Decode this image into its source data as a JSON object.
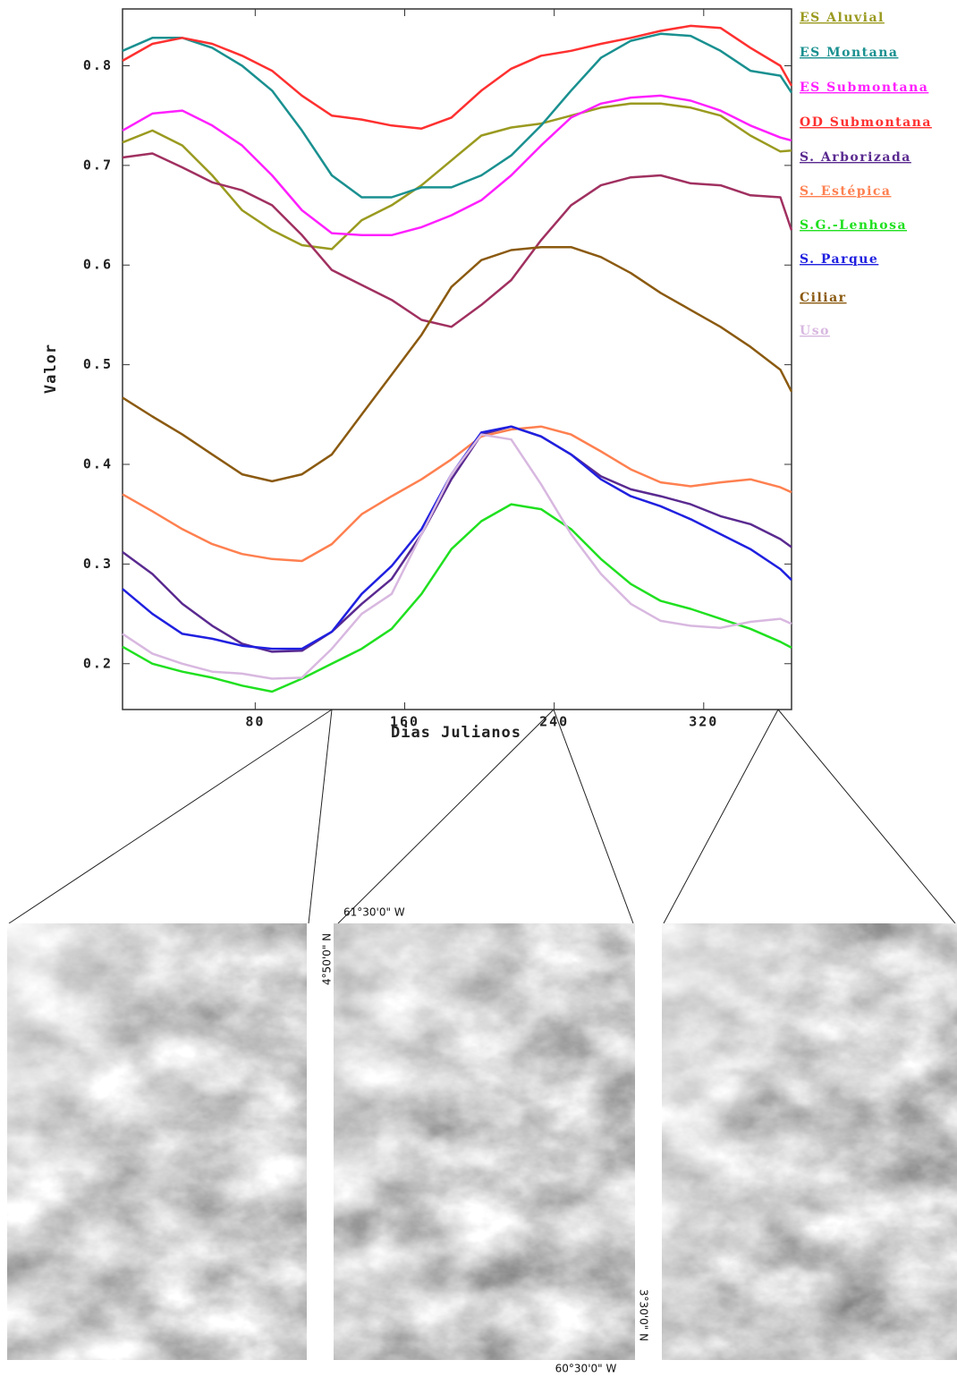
{
  "chart_data": {
    "type": "line",
    "xlabel": "Dias Julianos",
    "ylabel": "Valor",
    "x": [
      9,
      25,
      41,
      57,
      73,
      89,
      105,
      121,
      137,
      153,
      169,
      185,
      201,
      217,
      233,
      249,
      265,
      281,
      297,
      313,
      329,
      345,
      361,
      367
    ],
    "xlim": [
      9,
      367
    ],
    "xticks": [
      80,
      160,
      240,
      320
    ],
    "ylim": [
      0.154,
      0.857
    ],
    "yticks": [
      0.2,
      0.3,
      0.4,
      0.5,
      0.6,
      0.7,
      0.8
    ],
    "series": [
      {
        "name": "ES Aluvial",
        "color": "#9a9a20",
        "values": [
          0.723,
          0.735,
          0.72,
          0.69,
          0.655,
          0.635,
          0.62,
          0.616,
          0.645,
          0.66,
          0.68,
          0.705,
          0.73,
          0.738,
          0.742,
          0.75,
          0.758,
          0.762,
          0.762,
          0.758,
          0.75,
          0.73,
          0.714,
          0.715
        ]
      },
      {
        "name": "ES Montana",
        "color": "#1a9090",
        "values": [
          0.815,
          0.828,
          0.828,
          0.818,
          0.8,
          0.775,
          0.735,
          0.69,
          0.668,
          0.668,
          0.678,
          0.678,
          0.69,
          0.71,
          0.74,
          0.775,
          0.808,
          0.825,
          0.832,
          0.83,
          0.815,
          0.795,
          0.79,
          0.773
        ]
      },
      {
        "name": "ES Submontana",
        "color": "#ff20ff",
        "values": [
          0.735,
          0.752,
          0.755,
          0.74,
          0.72,
          0.69,
          0.655,
          0.632,
          0.63,
          0.63,
          0.638,
          0.65,
          0.665,
          0.69,
          0.72,
          0.748,
          0.762,
          0.768,
          0.77,
          0.765,
          0.755,
          0.74,
          0.728,
          0.725
        ]
      },
      {
        "name": "OD Submontana",
        "color": "#ff3030",
        "values": [
          0.805,
          0.822,
          0.828,
          0.822,
          0.81,
          0.795,
          0.77,
          0.75,
          0.746,
          0.74,
          0.737,
          0.748,
          0.775,
          0.797,
          0.81,
          0.815,
          0.822,
          0.828,
          0.835,
          0.84,
          0.838,
          0.818,
          0.8,
          0.78
        ]
      },
      {
        "color": "#a03060",
        "values": [
          0.708,
          0.712,
          0.698,
          0.683,
          0.675,
          0.66,
          0.63,
          0.595,
          0.58,
          0.565,
          0.545,
          0.538,
          0.56,
          0.585,
          0.625,
          0.66,
          0.68,
          0.688,
          0.69,
          0.682,
          0.68,
          0.67,
          0.668,
          0.635
        ]
      },
      {
        "name": "S. Arborizada",
        "color": "#5a2a90",
        "values": [
          0.312,
          0.29,
          0.26,
          0.238,
          0.22,
          0.212,
          0.213,
          0.232,
          0.26,
          0.285,
          0.33,
          0.385,
          0.43,
          0.438,
          0.428,
          0.41,
          0.388,
          0.375,
          0.368,
          0.36,
          0.348,
          0.34,
          0.325,
          0.317
        ]
      },
      {
        "name": "S. Estépica",
        "color": "#ff8050",
        "values": [
          0.37,
          0.353,
          0.335,
          0.32,
          0.31,
          0.305,
          0.303,
          0.32,
          0.35,
          0.368,
          0.385,
          0.405,
          0.428,
          0.435,
          0.438,
          0.43,
          0.413,
          0.395,
          0.382,
          0.378,
          0.382,
          0.385,
          0.377,
          0.372
        ]
      },
      {
        "name": "S.G.-Lenhosa",
        "color": "#20e020",
        "values": [
          0.217,
          0.2,
          0.192,
          0.186,
          0.178,
          0.172,
          0.185,
          0.2,
          0.215,
          0.235,
          0.27,
          0.315,
          0.343,
          0.36,
          0.355,
          0.335,
          0.305,
          0.28,
          0.263,
          0.255,
          0.245,
          0.235,
          0.222,
          0.216
        ]
      },
      {
        "name": "S. Parque",
        "color": "#2020e0",
        "values": [
          0.275,
          0.25,
          0.23,
          0.225,
          0.218,
          0.215,
          0.215,
          0.232,
          0.27,
          0.298,
          0.335,
          0.39,
          0.432,
          0.438,
          0.428,
          0.41,
          0.385,
          0.368,
          0.358,
          0.345,
          0.33,
          0.315,
          0.295,
          0.284
        ]
      },
      {
        "name": "Ciliar",
        "color": "#8b5a10",
        "values": [
          0.467,
          0.448,
          0.43,
          0.41,
          0.39,
          0.383,
          0.39,
          0.41,
          0.45,
          0.49,
          0.53,
          0.578,
          0.605,
          0.615,
          0.618,
          0.618,
          0.608,
          0.592,
          0.572,
          0.555,
          0.538,
          0.518,
          0.495,
          0.473
        ]
      },
      {
        "name": "Uso",
        "color": "#d8b8e0",
        "values": [
          0.23,
          0.21,
          0.2,
          0.192,
          0.19,
          0.185,
          0.186,
          0.215,
          0.25,
          0.27,
          0.33,
          0.39,
          0.43,
          0.425,
          0.38,
          0.33,
          0.29,
          0.26,
          0.243,
          0.238,
          0.236,
          0.242,
          0.245,
          0.24
        ]
      }
    ]
  },
  "map_labels": {
    "top_longitude": "61°30'0\" W",
    "top_latitude": "4°50'0\" N",
    "bottom_latitude": "3°30'0\" N",
    "bottom_longitude": "60°30'0\" W"
  }
}
